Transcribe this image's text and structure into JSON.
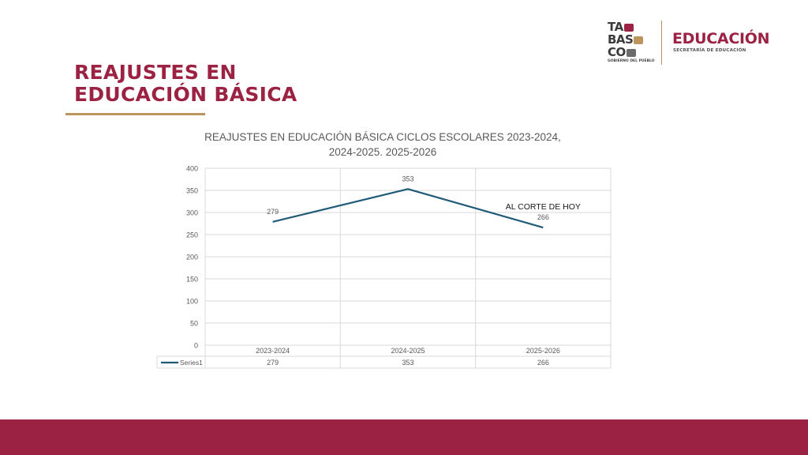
{
  "slide": {
    "title_line1": "REAJUSTES EN",
    "title_line2": "EDUCACIÓN BÁSICA"
  },
  "logo": {
    "tabasco_line1": "TA",
    "tabasco_line2": "BAS",
    "tabasco_line3": "CO",
    "tabasco_sub": "GOBIERNO DEL PUEBLO",
    "education_word": "EDUCACIÓN",
    "education_sub": "SECRETARÍA DE EDUCACIÓN"
  },
  "colors": {
    "brand_maroon": "#9b2242",
    "accent_gold": "#bc955c",
    "series_line": "#1f5b79"
  },
  "chart_data": {
    "type": "line",
    "title_line1": "REAJUSTES EN EDUCACIÓN BÁSICA  CICLOS ESCOLARES 2023-2024,",
    "title_line2": "2024-2025. 2025-2026",
    "categories": [
      "2023-2024",
      "2024-2025",
      "2025-2026"
    ],
    "series": [
      {
        "name": "Series1",
        "values": [
          279,
          353,
          266
        ]
      }
    ],
    "data_labels": [
      "279",
      "353",
      "266"
    ],
    "y_ticks": [
      "0",
      "50",
      "100",
      "150",
      "200",
      "250",
      "300",
      "350",
      "400"
    ],
    "ylim": [
      0,
      400
    ],
    "grid": true,
    "data_table": true,
    "annotation": "AL CORTE DE HOY"
  }
}
